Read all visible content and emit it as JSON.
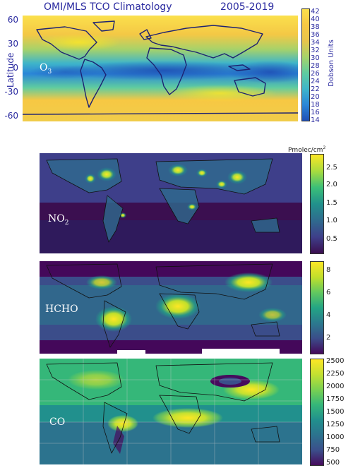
{
  "o3": {
    "title": "OMI/MLS TCO Climatology",
    "years": "2005-2019",
    "ylabel": "Latitude",
    "yticks": [
      "60",
      "30",
      "0",
      "-30",
      "-60"
    ],
    "label": "O",
    "label_sub": "3",
    "colorbar_label": "Dobson Units",
    "colorbar_ticks": [
      "42",
      "40",
      "38",
      "36",
      "34",
      "32",
      "30",
      "28",
      "26",
      "24",
      "22",
      "20",
      "18",
      "16",
      "14"
    ],
    "colors": [
      "#1f4fb5",
      "#2a86d8",
      "#3fb5c9",
      "#5fcca0",
      "#a6d26a",
      "#e8c44b",
      "#f7c843",
      "#fbe04c"
    ]
  },
  "no2": {
    "label": "NO",
    "label_sub": "2",
    "unit": "Pmolec/cm",
    "unit_sup": "2",
    "colorbar_ticks": [
      "2.5",
      "2.0",
      "1.5",
      "1.0",
      "0.5"
    ],
    "colors": [
      "#3b0f50",
      "#3e3f8a",
      "#2f6b8e",
      "#21918c",
      "#3bbf78",
      "#a9dc3e",
      "#fde725"
    ]
  },
  "hcho": {
    "label": "HCHO",
    "colorbar_ticks": [
      "8",
      "6",
      "4",
      "2"
    ],
    "colors": [
      "#44085a",
      "#3b4d8a",
      "#2b7a8e",
      "#23a584",
      "#62c85f",
      "#c1df2b",
      "#fde725"
    ]
  },
  "co": {
    "label": "CO",
    "colorbar_ticks": [
      "2500",
      "2250",
      "2000",
      "1750",
      "1500",
      "1250",
      "1000",
      "750",
      "500"
    ],
    "colors": [
      "#460b5d",
      "#3b4f8b",
      "#2c738e",
      "#21908d",
      "#35b779",
      "#7ad151",
      "#c3e031",
      "#fde725"
    ]
  }
}
